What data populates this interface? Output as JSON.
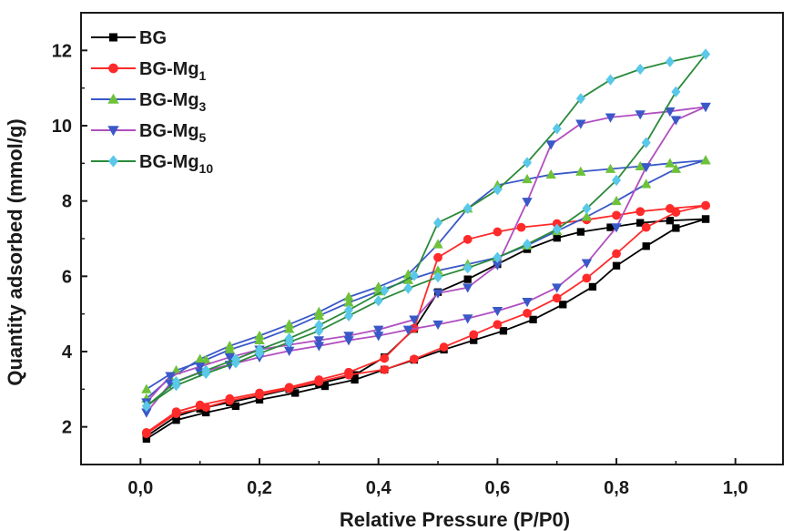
{
  "chart_data": {
    "type": "line",
    "xlabel": "Relative Pressure (P/P0)",
    "ylabel": "Quantity adsorbed (mmol/g)",
    "xlim": [
      -0.1,
      1.08
    ],
    "ylim": [
      1.0,
      13.0
    ],
    "xticks": [
      0.0,
      0.2,
      0.4,
      0.6,
      0.8,
      1.0
    ],
    "xtick_labels": [
      "0,0",
      "0,2",
      "0,4",
      "0,6",
      "0,8",
      "1,0"
    ],
    "yticks": [
      2,
      4,
      6,
      8,
      10,
      12
    ],
    "ytick_labels": [
      "2",
      "4",
      "6",
      "8",
      "10",
      "12"
    ],
    "legend_position": "top-left",
    "series": [
      {
        "name": "BG",
        "sub": "",
        "color": "#000000",
        "marker": "square",
        "adsorption": [
          [
            0.01,
            1.68
          ],
          [
            0.06,
            2.18
          ],
          [
            0.11,
            2.38
          ],
          [
            0.16,
            2.55
          ],
          [
            0.2,
            2.72
          ],
          [
            0.26,
            2.9
          ],
          [
            0.31,
            3.08
          ],
          [
            0.36,
            3.25
          ],
          [
            0.41,
            3.52
          ],
          [
            0.46,
            3.78
          ],
          [
            0.51,
            4.05
          ],
          [
            0.56,
            4.3
          ],
          [
            0.61,
            4.55
          ],
          [
            0.66,
            4.85
          ],
          [
            0.71,
            5.25
          ],
          [
            0.76,
            5.72
          ],
          [
            0.8,
            6.28
          ],
          [
            0.85,
            6.8
          ],
          [
            0.9,
            7.28
          ],
          [
            0.95,
            7.52
          ]
        ],
        "desorption": [
          [
            0.95,
            7.52
          ],
          [
            0.89,
            7.48
          ],
          [
            0.84,
            7.42
          ],
          [
            0.79,
            7.3
          ],
          [
            0.74,
            7.18
          ],
          [
            0.7,
            7.02
          ],
          [
            0.65,
            6.72
          ],
          [
            0.6,
            6.32
          ],
          [
            0.55,
            5.92
          ],
          [
            0.5,
            5.58
          ],
          [
            0.46,
            4.6
          ],
          [
            0.41,
            3.85
          ],
          [
            0.36,
            3.38
          ],
          [
            0.3,
            3.15
          ],
          [
            0.25,
            3.0
          ],
          [
            0.2,
            2.82
          ],
          [
            0.15,
            2.65
          ],
          [
            0.1,
            2.48
          ],
          [
            0.06,
            2.28
          ],
          [
            0.01,
            1.75
          ]
        ]
      },
      {
        "name": "BG-Mg",
        "sub": "1",
        "color": "#ff2a2a",
        "marker": "circle",
        "adsorption": [
          [
            0.01,
            1.82
          ],
          [
            0.06,
            2.35
          ],
          [
            0.11,
            2.52
          ],
          [
            0.15,
            2.7
          ],
          [
            0.2,
            2.85
          ],
          [
            0.25,
            3.02
          ],
          [
            0.3,
            3.2
          ],
          [
            0.35,
            3.38
          ],
          [
            0.41,
            3.52
          ],
          [
            0.46,
            3.8
          ],
          [
            0.51,
            4.12
          ],
          [
            0.56,
            4.45
          ],
          [
            0.6,
            4.72
          ],
          [
            0.65,
            5.02
          ],
          [
            0.7,
            5.42
          ],
          [
            0.75,
            5.95
          ],
          [
            0.8,
            6.6
          ],
          [
            0.85,
            7.3
          ],
          [
            0.9,
            7.7
          ],
          [
            0.95,
            7.88
          ]
        ],
        "desorption": [
          [
            0.95,
            7.88
          ],
          [
            0.89,
            7.8
          ],
          [
            0.84,
            7.72
          ],
          [
            0.8,
            7.62
          ],
          [
            0.75,
            7.5
          ],
          [
            0.7,
            7.4
          ],
          [
            0.64,
            7.3
          ],
          [
            0.6,
            7.18
          ],
          [
            0.55,
            6.98
          ],
          [
            0.5,
            6.5
          ],
          [
            0.46,
            4.62
          ],
          [
            0.41,
            3.82
          ],
          [
            0.35,
            3.45
          ],
          [
            0.3,
            3.25
          ],
          [
            0.25,
            3.05
          ],
          [
            0.2,
            2.9
          ],
          [
            0.15,
            2.75
          ],
          [
            0.1,
            2.58
          ],
          [
            0.06,
            2.4
          ],
          [
            0.01,
            1.85
          ]
        ]
      },
      {
        "name": "BG-Mg",
        "sub": "3",
        "color": "#3a58c8",
        "marker": "triangle-up",
        "marker_color": "#6ec23a",
        "adsorption": [
          [
            0.01,
            3.0
          ],
          [
            0.06,
            3.5
          ],
          [
            0.11,
            3.78
          ],
          [
            0.15,
            4.05
          ],
          [
            0.2,
            4.3
          ],
          [
            0.25,
            4.6
          ],
          [
            0.3,
            4.95
          ],
          [
            0.35,
            5.3
          ],
          [
            0.4,
            5.6
          ],
          [
            0.45,
            5.9
          ],
          [
            0.5,
            6.15
          ],
          [
            0.55,
            6.32
          ],
          [
            0.6,
            6.5
          ],
          [
            0.65,
            6.82
          ],
          [
            0.7,
            7.2
          ],
          [
            0.75,
            7.58
          ],
          [
            0.8,
            8.0
          ],
          [
            0.85,
            8.45
          ],
          [
            0.9,
            8.85
          ],
          [
            0.95,
            9.08
          ]
        ],
        "desorption": [
          [
            0.95,
            9.08
          ],
          [
            0.89,
            9.0
          ],
          [
            0.84,
            8.92
          ],
          [
            0.79,
            8.85
          ],
          [
            0.74,
            8.78
          ],
          [
            0.69,
            8.7
          ],
          [
            0.65,
            8.58
          ],
          [
            0.6,
            8.42
          ],
          [
            0.55,
            7.8
          ],
          [
            0.5,
            6.85
          ],
          [
            0.45,
            6.05
          ],
          [
            0.4,
            5.72
          ],
          [
            0.35,
            5.45
          ],
          [
            0.3,
            5.05
          ],
          [
            0.25,
            4.72
          ],
          [
            0.2,
            4.42
          ],
          [
            0.15,
            4.15
          ],
          [
            0.1,
            3.8
          ],
          [
            0.05,
            3.3
          ],
          [
            0.01,
            2.75
          ]
        ]
      },
      {
        "name": "BG-Mg",
        "sub": "5",
        "color": "#b04fc0",
        "marker": "triangle-down",
        "marker_color": "#3a58c8",
        "adsorption": [
          [
            0.01,
            2.38
          ],
          [
            0.05,
            3.15
          ],
          [
            0.1,
            3.45
          ],
          [
            0.15,
            3.65
          ],
          [
            0.2,
            3.85
          ],
          [
            0.25,
            4.02
          ],
          [
            0.3,
            4.15
          ],
          [
            0.35,
            4.3
          ],
          [
            0.4,
            4.42
          ],
          [
            0.45,
            4.58
          ],
          [
            0.5,
            4.72
          ],
          [
            0.55,
            4.88
          ],
          [
            0.6,
            5.08
          ],
          [
            0.65,
            5.32
          ],
          [
            0.7,
            5.7
          ],
          [
            0.75,
            6.35
          ],
          [
            0.8,
            7.3
          ],
          [
            0.85,
            8.9
          ],
          [
            0.9,
            10.15
          ],
          [
            0.95,
            10.5
          ]
        ],
        "desorption": [
          [
            0.95,
            10.5
          ],
          [
            0.89,
            10.38
          ],
          [
            0.84,
            10.3
          ],
          [
            0.79,
            10.22
          ],
          [
            0.74,
            10.05
          ],
          [
            0.69,
            9.5
          ],
          [
            0.65,
            7.98
          ],
          [
            0.6,
            6.3
          ],
          [
            0.55,
            5.7
          ],
          [
            0.5,
            5.55
          ],
          [
            0.46,
            4.85
          ],
          [
            0.4,
            4.58
          ],
          [
            0.35,
            4.42
          ],
          [
            0.3,
            4.3
          ],
          [
            0.25,
            4.18
          ],
          [
            0.2,
            4.05
          ],
          [
            0.15,
            3.85
          ],
          [
            0.1,
            3.6
          ],
          [
            0.05,
            3.35
          ],
          [
            0.01,
            2.65
          ]
        ]
      },
      {
        "name": "BG-Mg",
        "sub": "10",
        "color": "#2a8a3a",
        "marker": "diamond",
        "marker_color": "#5ac8e8",
        "adsorption": [
          [
            0.01,
            2.55
          ],
          [
            0.06,
            3.1
          ],
          [
            0.11,
            3.42
          ],
          [
            0.16,
            3.7
          ],
          [
            0.2,
            3.95
          ],
          [
            0.25,
            4.25
          ],
          [
            0.3,
            4.55
          ],
          [
            0.35,
            4.95
          ],
          [
            0.4,
            5.35
          ],
          [
            0.45,
            5.68
          ],
          [
            0.5,
            5.98
          ],
          [
            0.55,
            6.22
          ],
          [
            0.6,
            6.5
          ],
          [
            0.65,
            6.85
          ],
          [
            0.7,
            7.25
          ],
          [
            0.75,
            7.8
          ],
          [
            0.8,
            8.55
          ],
          [
            0.85,
            9.55
          ],
          [
            0.9,
            10.9
          ],
          [
            0.95,
            11.9
          ]
        ],
        "desorption": [
          [
            0.95,
            11.9
          ],
          [
            0.89,
            11.7
          ],
          [
            0.84,
            11.5
          ],
          [
            0.79,
            11.22
          ],
          [
            0.74,
            10.72
          ],
          [
            0.7,
            9.92
          ],
          [
            0.65,
            9.02
          ],
          [
            0.6,
            8.3
          ],
          [
            0.55,
            7.8
          ],
          [
            0.5,
            7.42
          ],
          [
            0.46,
            6.02
          ],
          [
            0.41,
            5.62
          ],
          [
            0.35,
            5.1
          ],
          [
            0.3,
            4.7
          ],
          [
            0.25,
            4.35
          ],
          [
            0.2,
            4.05
          ],
          [
            0.16,
            3.8
          ],
          [
            0.11,
            3.5
          ],
          [
            0.06,
            3.2
          ],
          [
            0.01,
            2.55
          ]
        ]
      }
    ]
  }
}
